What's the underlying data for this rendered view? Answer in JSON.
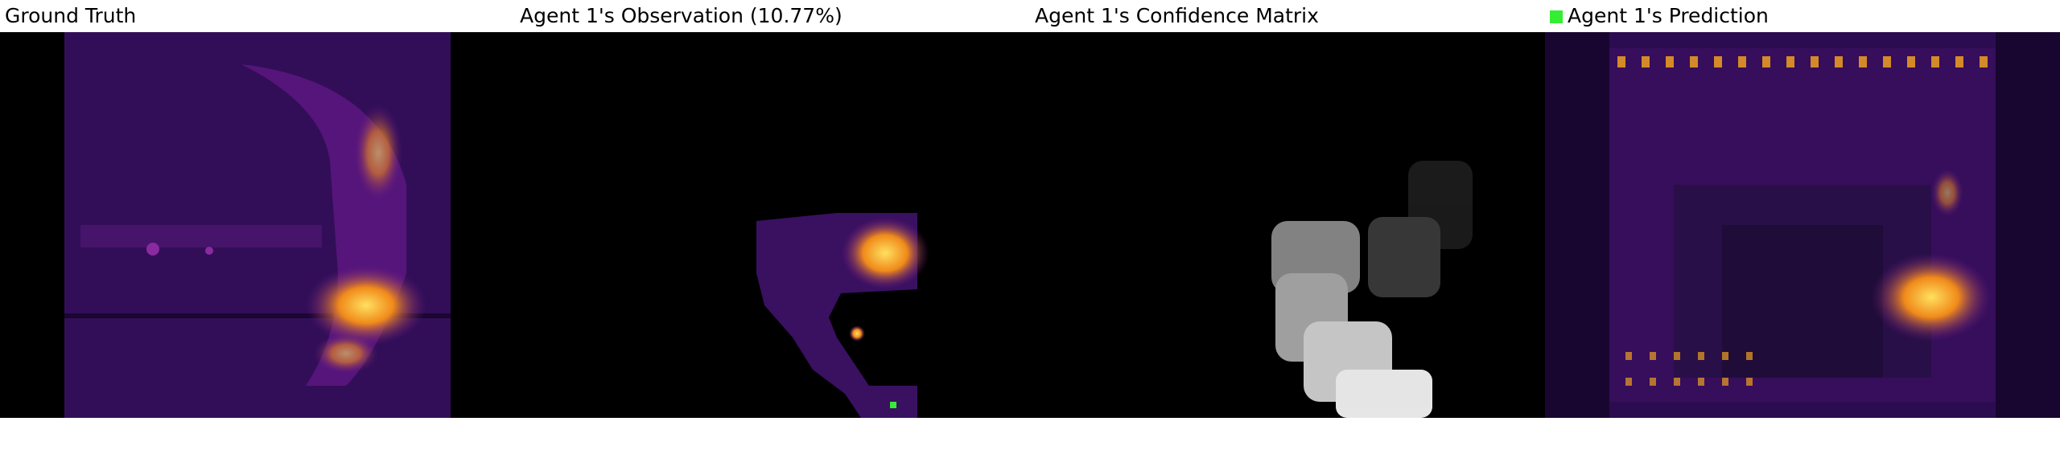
{
  "panels": {
    "ground_truth": {
      "title": "Ground Truth"
    },
    "observation": {
      "title": "Agent 1's Observation (10.77%)"
    },
    "confidence": {
      "title": "Agent 1's Confidence Matrix"
    },
    "prediction": {
      "title": "Agent 1's Prediction"
    }
  },
  "legend": {
    "agent_color": "#33ee33"
  },
  "colors": {
    "background": "#000000",
    "heat_low": "#2a0a4a",
    "heat_mid": "#6a1a8a",
    "heat_high": "#f0a020",
    "heat_peak": "#ffe060"
  }
}
